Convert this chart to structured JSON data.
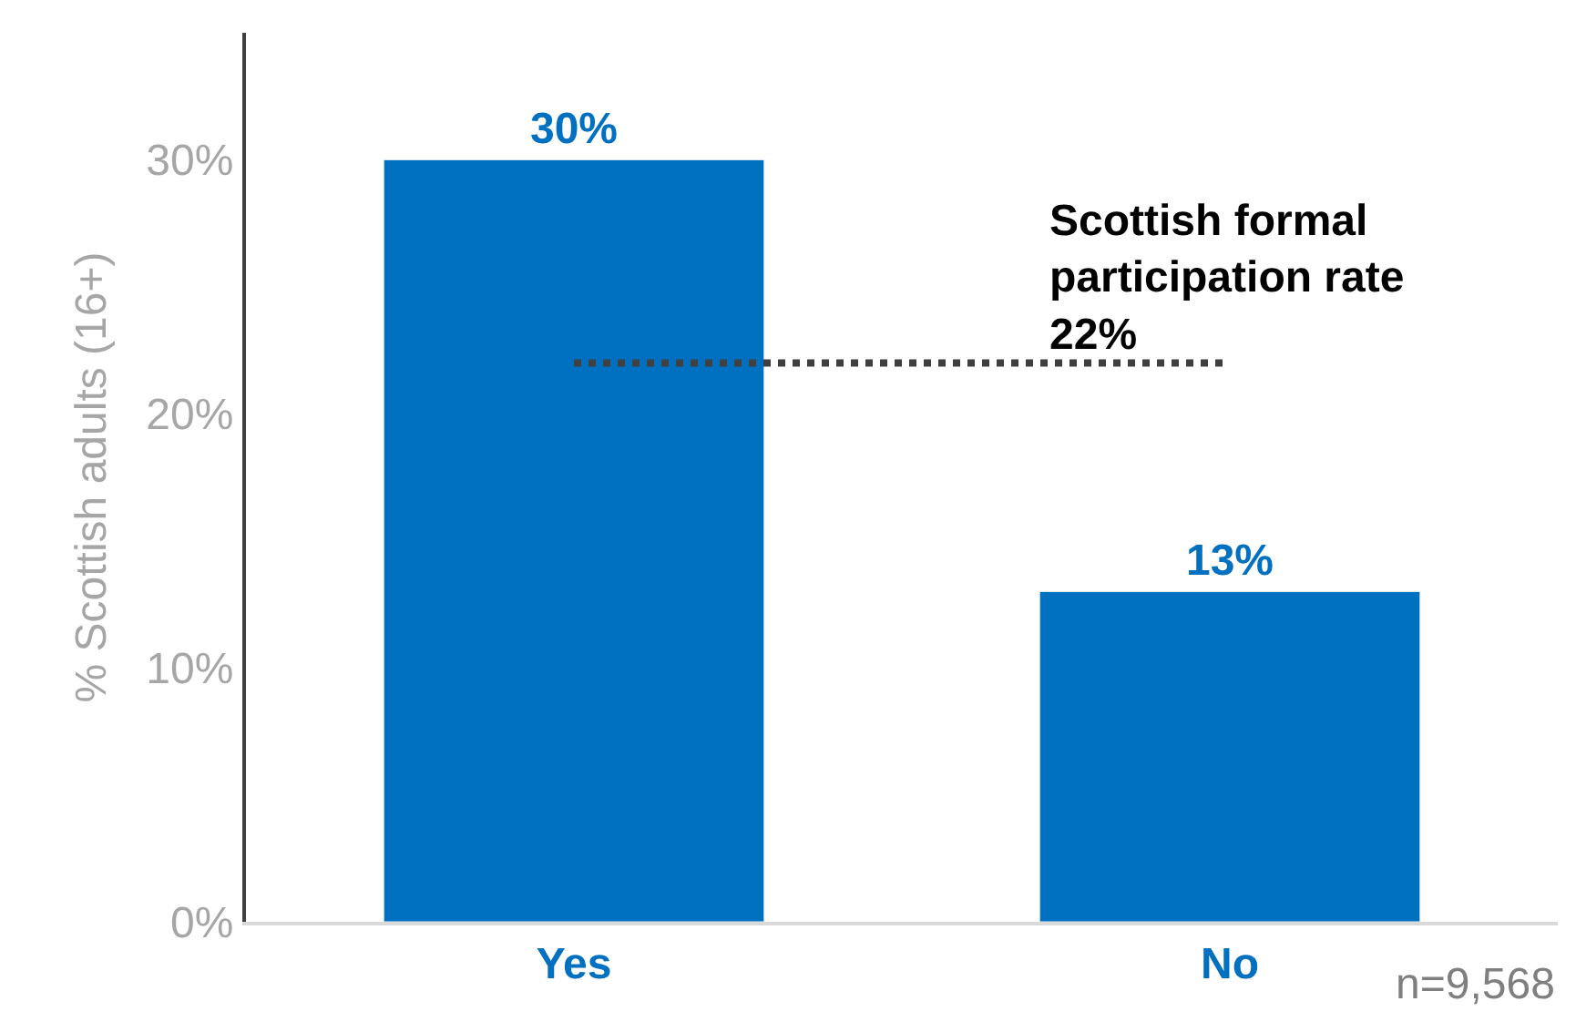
{
  "chart_data": {
    "type": "bar",
    "categories": [
      "Yes",
      "No"
    ],
    "values": [
      30,
      13
    ],
    "color": "#0070c0",
    "value_labels": [
      "30%",
      "13%"
    ],
    "ylabel": "% Scottish adults (16+)",
    "ylim": [
      0,
      35
    ],
    "yticks": [
      {
        "value": 0,
        "label": "0%"
      },
      {
        "value": 10,
        "label": "10%"
      },
      {
        "value": 20,
        "label": "20%"
      },
      {
        "value": 30,
        "label": "30%"
      }
    ],
    "legend": false,
    "ref_lines": [
      {
        "axis": "y",
        "value": 22,
        "label": "Scottish formal\nparticipation rate\n22%",
        "color": "#404040",
        "line_style": "dotted"
      }
    ],
    "annotations": [
      "n=9,568"
    ]
  }
}
